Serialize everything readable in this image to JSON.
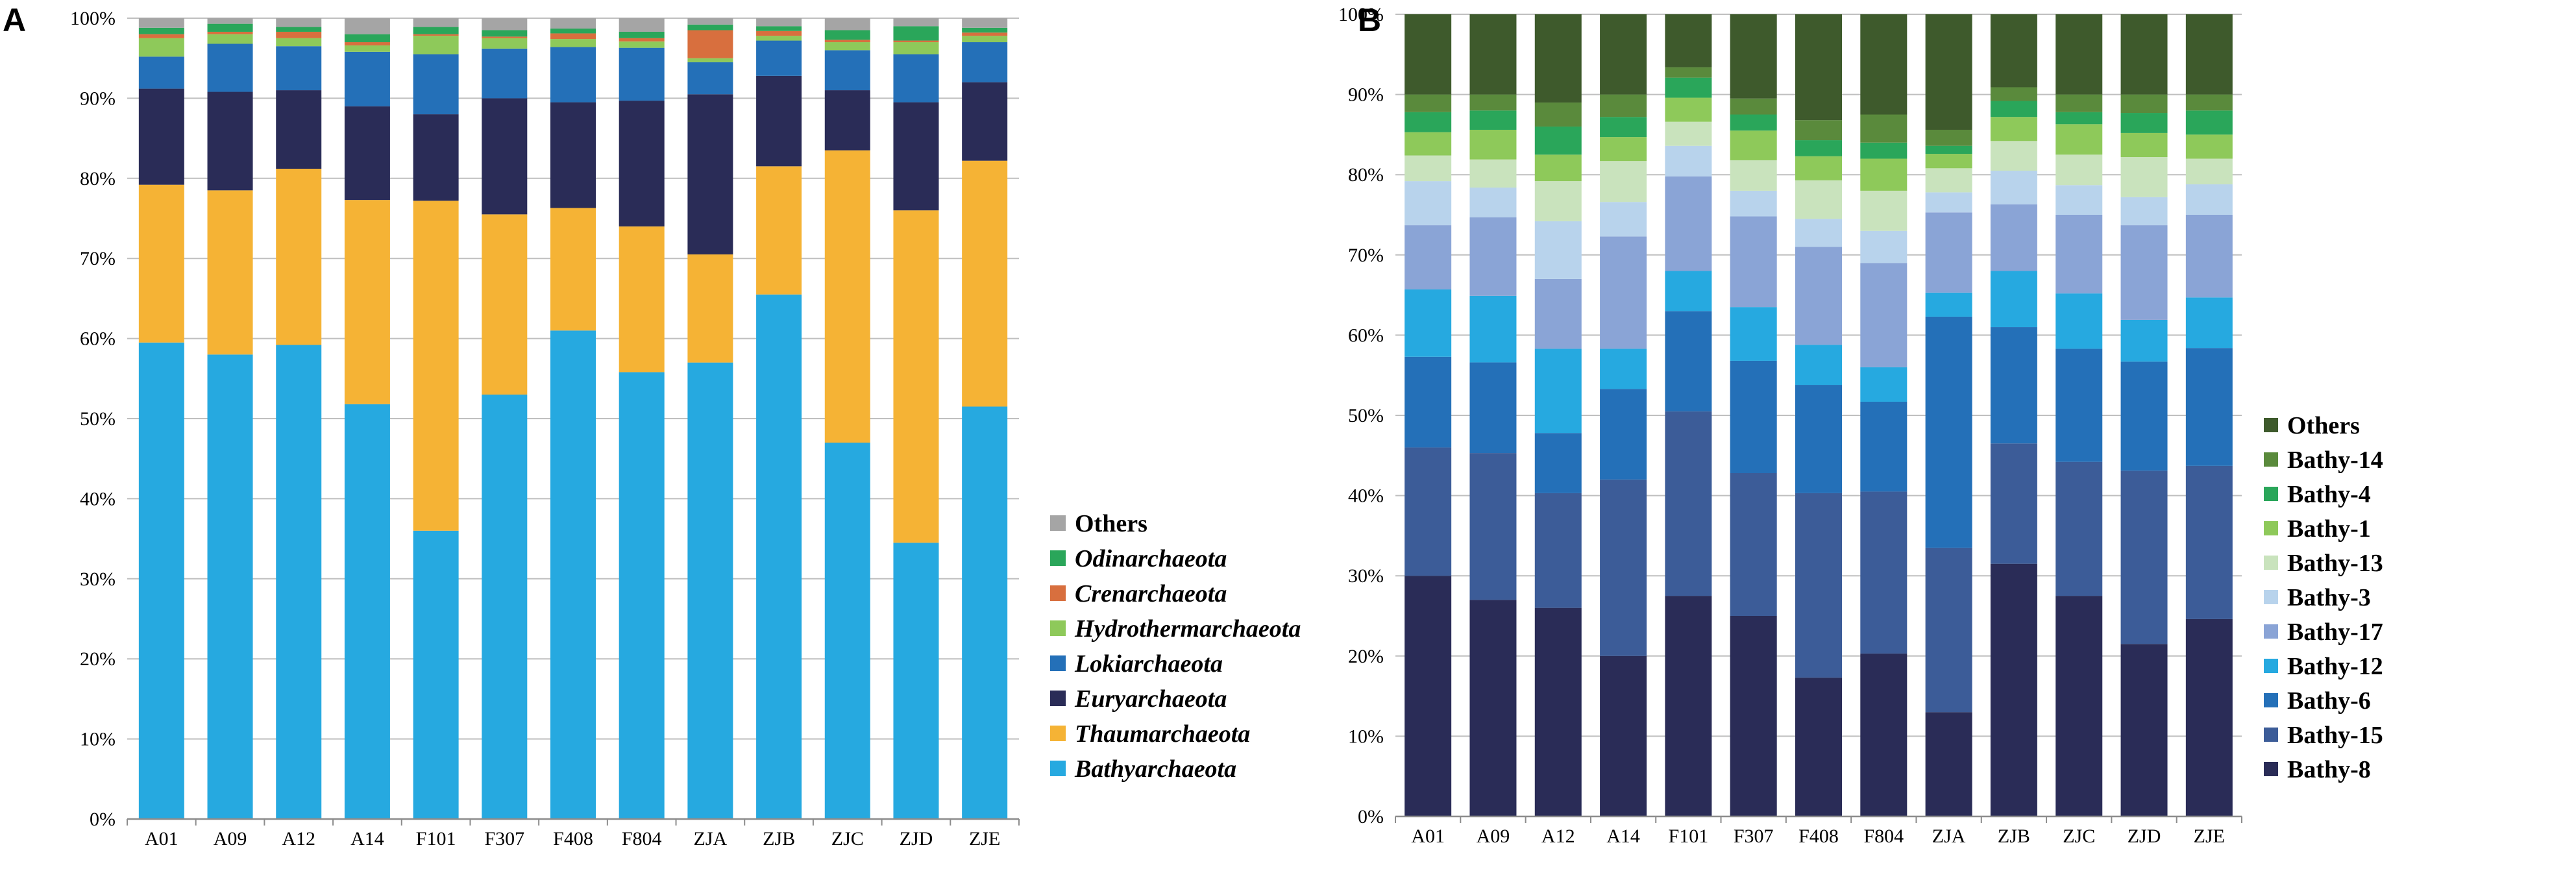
{
  "colors": {
    "gridline": "#bfbfbf",
    "axis": "#8c8c8c"
  },
  "chart_data": [
    {
      "panel": "A",
      "type": "bar",
      "stacked": true,
      "percent": true,
      "ylim": [
        0,
        100
      ],
      "yticks": [
        "0%",
        "10%",
        "20%",
        "30%",
        "40%",
        "50%",
        "60%",
        "70%",
        "80%",
        "90%",
        "100%"
      ],
      "categories": [
        "A01",
        "A09",
        "A12",
        "A14",
        "F101",
        "F307",
        "F408",
        "F804",
        "ZJA",
        "ZJB",
        "ZJC",
        "ZJD",
        "ZJE"
      ],
      "legend_italic": true,
      "series": [
        {
          "name": "Bathyarchaeota",
          "color": "#26a9e0",
          "values": [
            59.5,
            58.0,
            59.2,
            51.8,
            36.0,
            53.0,
            61.0,
            55.8,
            57.0,
            65.5,
            47.0,
            34.5,
            51.5
          ]
        },
        {
          "name": "Thaumarchaeota",
          "color": "#f5b335",
          "values": [
            19.7,
            20.5,
            22.0,
            25.5,
            41.2,
            22.5,
            15.3,
            18.2,
            13.5,
            16.0,
            36.5,
            41.5,
            30.7
          ]
        },
        {
          "name": "Euryarchaeota",
          "color": "#2a2c57",
          "values": [
            12.0,
            12.3,
            9.8,
            11.7,
            10.8,
            14.5,
            13.2,
            15.7,
            20.0,
            11.3,
            7.5,
            13.5,
            9.8
          ]
        },
        {
          "name": "Lokiarchaeota",
          "color": "#2470b8",
          "values": [
            4.0,
            6.0,
            5.5,
            6.8,
            7.5,
            6.2,
            6.9,
            6.6,
            4.0,
            4.4,
            5.0,
            6.0,
            5.0
          ]
        },
        {
          "name": "Hydrothermarchaeota",
          "color": "#8ec95a",
          "values": [
            2.3,
            1.2,
            1.0,
            0.8,
            2.3,
            1.3,
            1.0,
            0.8,
            0.5,
            0.6,
            1.0,
            1.5,
            0.8
          ]
        },
        {
          "name": "Crenarchaeota",
          "color": "#d86f3e",
          "values": [
            0.5,
            0.3,
            0.8,
            0.4,
            0.2,
            0.2,
            0.7,
            0.4,
            3.5,
            0.6,
            0.3,
            0.2,
            0.4
          ]
        },
        {
          "name": "Odinarchaeota",
          "color": "#2aa65a",
          "values": [
            0.8,
            1.0,
            0.6,
            1.0,
            0.9,
            0.8,
            0.6,
            0.8,
            0.7,
            0.6,
            1.2,
            1.8,
            0.6
          ]
        },
        {
          "name": "Others",
          "color": "#a5a5a5",
          "values": [
            1.2,
            0.7,
            1.1,
            2.0,
            1.1,
            1.5,
            1.3,
            1.7,
            0.8,
            1.0,
            1.5,
            1.0,
            1.2
          ]
        }
      ]
    },
    {
      "panel": "B",
      "type": "bar",
      "stacked": true,
      "percent": true,
      "ylim": [
        0,
        100
      ],
      "yticks": [
        "0%",
        "10%",
        "20%",
        "30%",
        "40%",
        "50%",
        "60%",
        "70%",
        "80%",
        "90%",
        "100%"
      ],
      "categories": [
        "A01",
        "A09",
        "A12",
        "A14",
        "F101",
        "F307",
        "F408",
        "F804",
        "ZJA",
        "ZJB",
        "ZJC",
        "ZJD",
        "ZJE"
      ],
      "legend_italic": false,
      "series": [
        {
          "name": "Bathy-8",
          "color": "#2a2c57",
          "values": [
            30.0,
            27.0,
            26.0,
            20.0,
            27.5,
            25.0,
            17.3,
            20.3,
            13.0,
            31.5,
            27.5,
            21.5,
            24.6
          ]
        },
        {
          "name": "Bathy-15",
          "color": "#3c5c98",
          "values": [
            16.0,
            18.3,
            14.3,
            22.0,
            23.0,
            17.8,
            23.0,
            20.2,
            20.5,
            15.0,
            16.7,
            21.6,
            19.1
          ]
        },
        {
          "name": "Bathy-6",
          "color": "#2470b8",
          "values": [
            11.3,
            11.3,
            7.5,
            11.3,
            12.5,
            14.0,
            13.5,
            11.2,
            28.8,
            14.5,
            14.1,
            13.6,
            14.7
          ]
        },
        {
          "name": "Bathy-12",
          "color": "#26a9e0",
          "values": [
            8.4,
            8.3,
            10.5,
            5.0,
            5.0,
            6.7,
            5.0,
            4.3,
            3.0,
            7.0,
            6.9,
            5.2,
            6.3
          ]
        },
        {
          "name": "Bathy-17",
          "color": "#8aa4d6",
          "values": [
            8.0,
            9.8,
            8.7,
            14.0,
            11.8,
            11.3,
            12.2,
            13.0,
            10.0,
            8.3,
            9.8,
            11.8,
            10.3
          ]
        },
        {
          "name": "Bathy-3",
          "color": "#b8d3ec",
          "values": [
            5.5,
            3.7,
            7.2,
            4.3,
            3.8,
            3.2,
            3.5,
            4.0,
            2.5,
            4.2,
            3.7,
            3.5,
            3.8
          ]
        },
        {
          "name": "Bathy-13",
          "color": "#c9e3bd",
          "values": [
            3.2,
            3.5,
            5.0,
            5.1,
            3.0,
            3.8,
            4.8,
            5.0,
            3.0,
            3.7,
            3.8,
            5.0,
            3.2
          ]
        },
        {
          "name": "Bathy-1",
          "color": "#8ec95a",
          "values": [
            2.9,
            3.7,
            3.3,
            3.0,
            3.0,
            3.7,
            3.0,
            4.0,
            1.8,
            3.0,
            3.8,
            3.0,
            3.0
          ]
        },
        {
          "name": "Bathy-4",
          "color": "#2aa65a",
          "values": [
            2.5,
            2.4,
            3.5,
            2.5,
            2.5,
            2.0,
            2.0,
            2.0,
            1.0,
            2.0,
            1.5,
            2.5,
            3.0
          ]
        },
        {
          "name": "Bathy-14",
          "color": "#5a8a3c",
          "values": [
            2.2,
            2.0,
            3.0,
            2.8,
            1.3,
            2.0,
            2.5,
            3.5,
            2.0,
            1.7,
            2.2,
            2.3,
            2.0
          ]
        },
        {
          "name": "Others",
          "color": "#3e5a2c",
          "values": [
            10.0,
            10.0,
            11.0,
            10.0,
            6.6,
            10.5,
            13.2,
            12.5,
            14.4,
            9.1,
            10.0,
            10.0,
            10.0
          ]
        }
      ]
    }
  ]
}
